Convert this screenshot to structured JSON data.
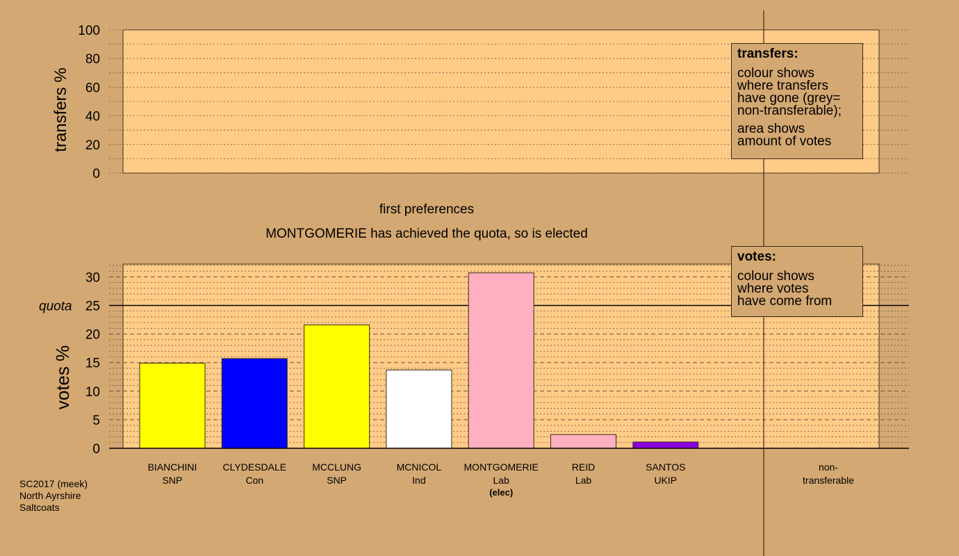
{
  "chart_data": [
    {
      "type": "bar",
      "ylabel": "transfers %",
      "ylim": [
        0,
        100
      ],
      "yticks": [
        0,
        20,
        40,
        60,
        80,
        100
      ],
      "values": []
    },
    {
      "type": "bar",
      "title": "first preferences",
      "subtitle": "MONTGOMERIE has achieved the quota, so is elected",
      "ylabel": "votes %",
      "ylim": [
        0,
        32
      ],
      "yticks": [
        0,
        5,
        10,
        15,
        20,
        25,
        30
      ],
      "quota": 25,
      "quota_label": "quota",
      "categories": [
        {
          "name": "BIANCHINI",
          "party": "SNP",
          "note": "",
          "value": 14.9,
          "color": "#ffff00"
        },
        {
          "name": "CLYDESDALE",
          "party": "Con",
          "note": "",
          "value": 15.7,
          "color": "#0000ff"
        },
        {
          "name": "MCCLUNG",
          "party": "SNP",
          "note": "",
          "value": 21.6,
          "color": "#ffff00"
        },
        {
          "name": "MCNICOL",
          "party": "Ind",
          "note": "",
          "value": 13.7,
          "color": "#ffffff"
        },
        {
          "name": "MONTGOMERIE",
          "party": "Lab",
          "note": "(elec)",
          "value": 30.7,
          "color": "#ffb0c0"
        },
        {
          "name": "REID",
          "party": "Lab",
          "note": "",
          "value": 2.4,
          "color": "#ffb0c0"
        },
        {
          "name": "SANTOS",
          "party": "UKIP",
          "note": "",
          "value": 1.1,
          "color": "#8800dd"
        }
      ],
      "nontransferable_label": [
        "non-",
        "transferable"
      ]
    }
  ],
  "legends": {
    "transfers": {
      "title": "transfers:",
      "para1": [
        "colour shows",
        "where transfers",
        "have gone (grey=",
        "non-transferable);"
      ],
      "para2": [
        "area shows",
        "amount of votes"
      ]
    },
    "votes": {
      "title": "votes:",
      "para1": [
        "colour shows",
        "where votes",
        "have come from"
      ]
    }
  },
  "footer": [
    "SC2017 (meek)",
    "North Ayrshire",
    "Saltcoats"
  ],
  "colors": {
    "background": "#d4a872",
    "plot_area": "#ffcc88"
  }
}
